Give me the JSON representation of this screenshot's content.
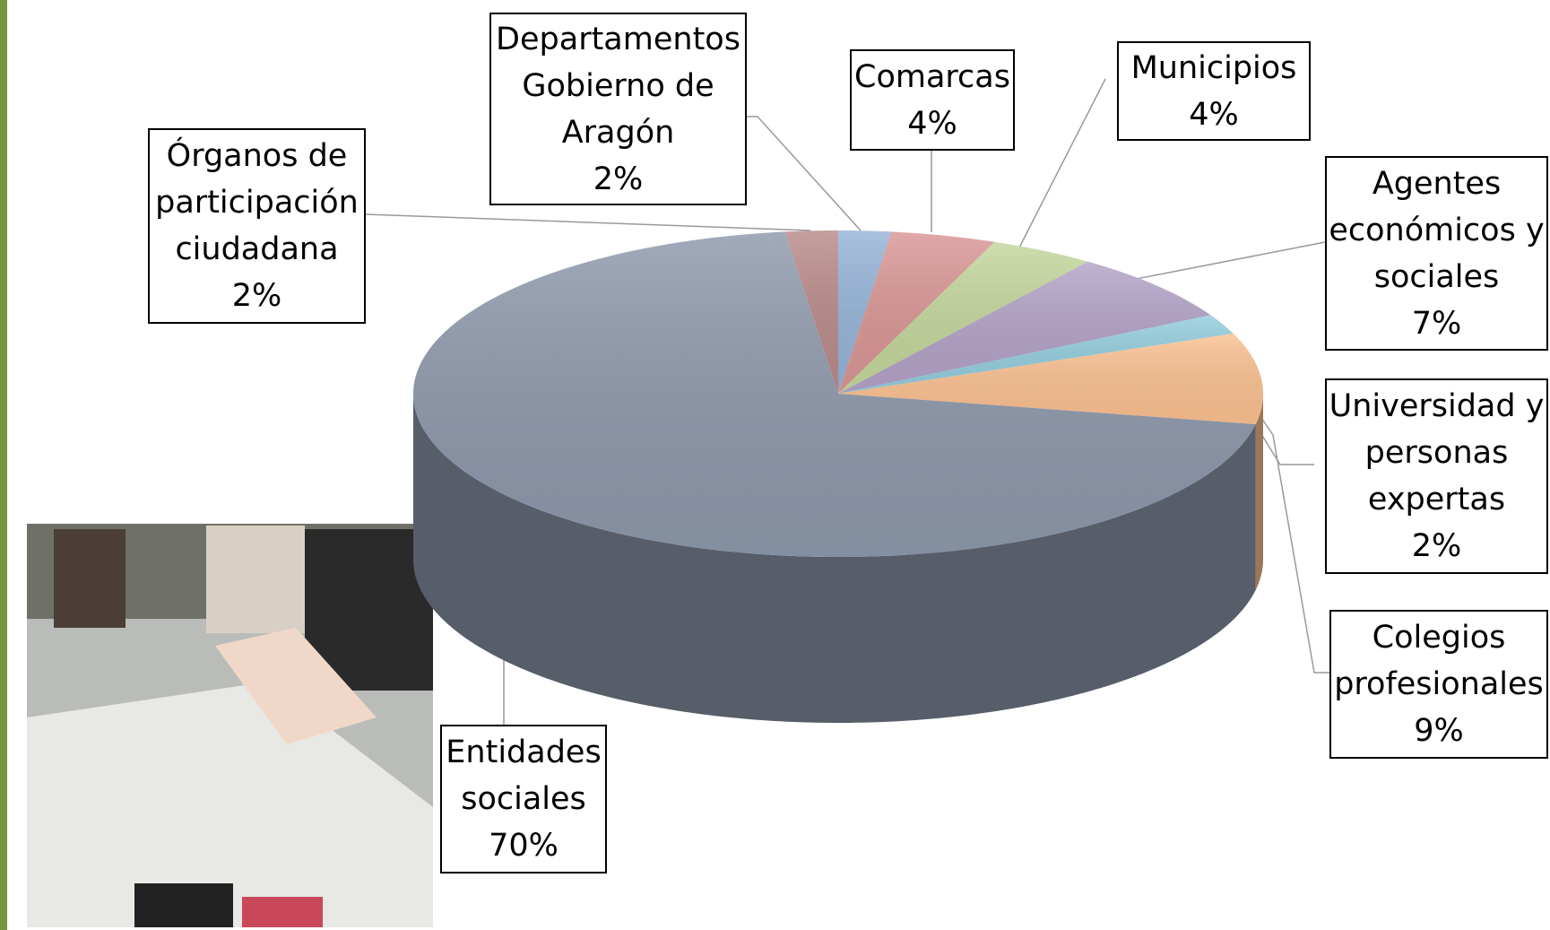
{
  "chart_data": {
    "type": "pie",
    "categories": [
      "Departamentos Gobierno de Aragón",
      "Comarcas",
      "Municipios",
      "Agentes económicos y sociales",
      "Universidad y personas expertas",
      "Colegios profesionales",
      "Entidades sociales",
      "Órganos de participación ciudadana"
    ],
    "values": [
      2,
      4,
      4,
      7,
      2,
      9,
      70,
      2
    ],
    "value_labels": [
      "2%",
      "4%",
      "4%",
      "7%",
      "2%",
      "9%",
      "70%",
      "2%"
    ],
    "colors": [
      "#95b3d7",
      "#d99694",
      "#c3d69b",
      "#b3a2c7",
      "#93cddd",
      "#fac090",
      "#8d98ab",
      "#b98a8a"
    ]
  }
}
